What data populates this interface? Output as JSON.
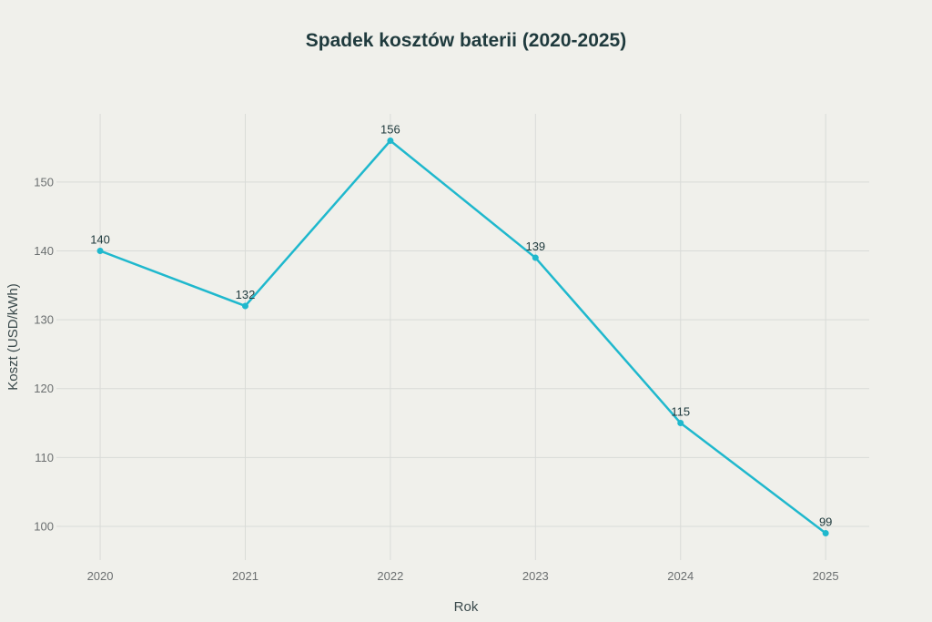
{
  "chart_data": {
    "type": "line",
    "title": "Spadek kosztów baterii (2020-2025)",
    "xlabel": "Rok",
    "ylabel": "Koszt (USD/kWh)",
    "x": [
      "2020",
      "2021",
      "2022",
      "2023",
      "2024",
      "2025"
    ],
    "series": [
      {
        "name": "Koszt",
        "values": [
          140,
          132,
          156,
          139,
          115,
          99
        ]
      }
    ],
    "yticks": [
      100,
      110,
      120,
      130,
      140,
      150
    ],
    "ylim": [
      95.1,
      159.9
    ],
    "xlim": [
      2019.73,
      2025.3
    ],
    "grid": true,
    "line_color": "#1fb8cd",
    "data_labels": true
  }
}
